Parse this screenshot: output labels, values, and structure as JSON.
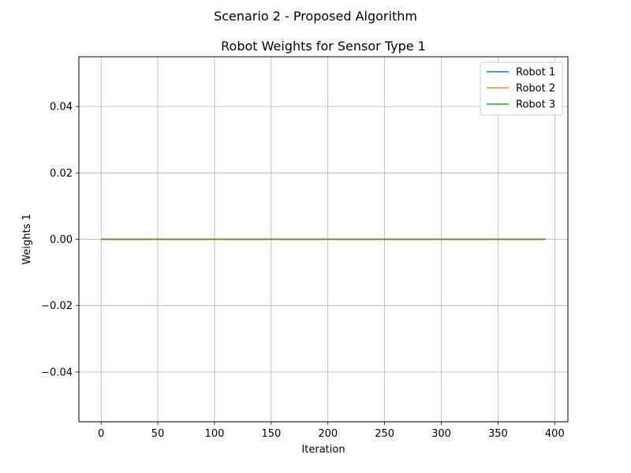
{
  "figure": {
    "suptitle": "Scenario 2 - Proposed Algorithm"
  },
  "chart_data": {
    "type": "line",
    "title": "Robot Weights for Sensor Type 1",
    "xlabel": "Iteration",
    "ylabel": "Weights 1",
    "xlim": [
      -19.6,
      411.6
    ],
    "ylim": [
      -0.055,
      0.055
    ],
    "xticks": [
      0,
      50,
      100,
      150,
      200,
      250,
      300,
      350,
      400
    ],
    "xtick_labels": [
      "0",
      "50",
      "100",
      "150",
      "200",
      "250",
      "300",
      "350",
      "400"
    ],
    "yticks": [
      -0.04,
      -0.02,
      0.0,
      0.02,
      0.04
    ],
    "ytick_labels": [
      "−0.04",
      "−0.02",
      "0.00",
      "0.02",
      "0.04"
    ],
    "grid": true,
    "legend_position": "upper right",
    "series": [
      {
        "name": "Robot 1",
        "color": "#1f77b4",
        "x": [
          0,
          392
        ],
        "y": [
          0.0,
          0.0
        ]
      },
      {
        "name": "Robot 2",
        "color": "#ff7f0e",
        "x": [
          0,
          392
        ],
        "y": [
          0.0,
          0.0
        ]
      },
      {
        "name": "Robot 3",
        "color": "#2ca02c",
        "x": [
          0,
          392
        ],
        "y": [
          0.0,
          0.0
        ]
      }
    ]
  }
}
